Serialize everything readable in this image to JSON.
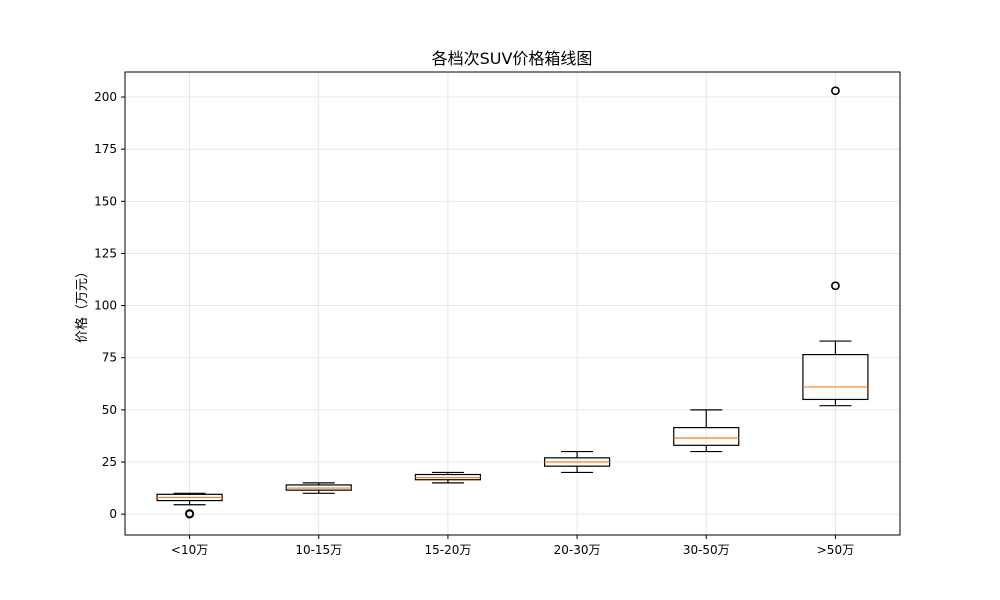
{
  "chart_data": {
    "type": "box",
    "title": "各档次SUV价格箱线图",
    "xlabel": "",
    "ylabel": "价格（万元）",
    "ylim": [
      -10,
      212
    ],
    "yticks": [
      0,
      25,
      50,
      75,
      100,
      125,
      150,
      175,
      200
    ],
    "grid": true,
    "categories": [
      "<10万",
      "10-15万",
      "15-20万",
      "20-30万",
      "30-50万",
      ">50万"
    ],
    "boxes": [
      {
        "category": "<10万",
        "whisker_low": 4.5,
        "q1": 6.5,
        "median": 8.0,
        "q3": 9.5,
        "whisker_high": 10.0,
        "outliers": [
          0.0,
          0.3
        ]
      },
      {
        "category": "10-15万",
        "whisker_low": 10.0,
        "q1": 11.5,
        "median": 12.5,
        "q3": 14.0,
        "whisker_high": 15.0,
        "outliers": []
      },
      {
        "category": "15-20万",
        "whisker_low": 15.0,
        "q1": 16.5,
        "median": 17.5,
        "q3": 19.0,
        "whisker_high": 20.0,
        "outliers": []
      },
      {
        "category": "20-30万",
        "whisker_low": 20.0,
        "q1": 23.0,
        "median": 25.0,
        "q3": 27.0,
        "whisker_high": 30.0,
        "outliers": []
      },
      {
        "category": "30-50万",
        "whisker_low": 30.0,
        "q1": 33.0,
        "median": 36.5,
        "q3": 41.5,
        "whisker_high": 50.0,
        "outliers": []
      },
      {
        "category": ">50万",
        "whisker_low": 52.0,
        "q1": 55.0,
        "median": 61.0,
        "q3": 76.5,
        "whisker_high": 83.0,
        "outliers": [
          109.5,
          203.0
        ]
      }
    ],
    "colors": {
      "box": "#000000",
      "median": "#ff7f0e",
      "outlier": "#000000",
      "grid": "#b0b0b0"
    }
  }
}
